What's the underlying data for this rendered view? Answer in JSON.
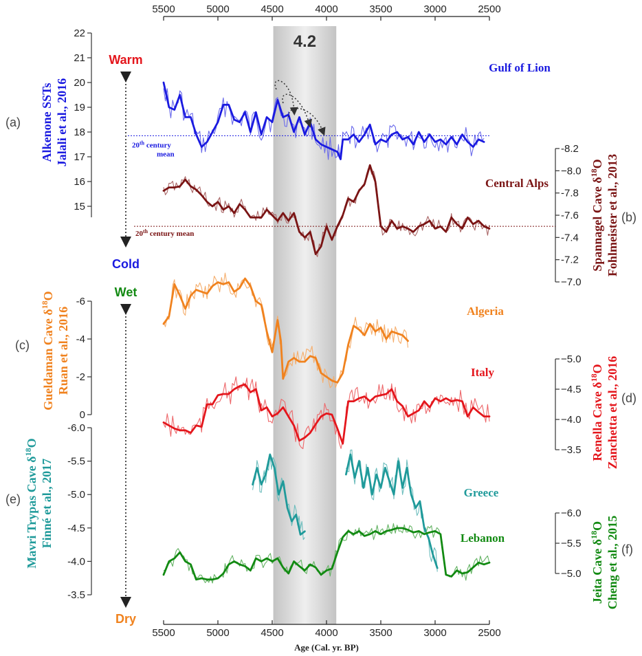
{
  "chart_data": {
    "type": "line",
    "x_axis": {
      "label": "Age (Cal. yr. BP)",
      "range": [
        5500,
        2500
      ],
      "reversed": true,
      "ticks": [
        5500,
        5000,
        4500,
        4000,
        3500,
        3000,
        2500
      ],
      "top_and_bottom": true
    },
    "event": {
      "label": "4.2",
      "x_range": [
        4490,
        3910
      ],
      "color": "#c9c9c9"
    },
    "axis_annotations": {
      "top": {
        "warm": "Warm",
        "cold": "Cold",
        "warm_color": "#e4161c",
        "cold_color": "#1a1ae0"
      },
      "bottom": {
        "wet": "Wet",
        "dry": "Dry",
        "wet_color": "#128a12",
        "dry_color": "#f0821e"
      }
    },
    "panels": [
      {
        "id": "a",
        "panel_label": "(a)",
        "site": "Gulf of Lion",
        "color": "#1a1ae0",
        "side": "left",
        "axis_title": [
          "Alkenone SSTs",
          "Jalali et al., 2016"
        ],
        "ticks": [
          15,
          16,
          17,
          18,
          19,
          20,
          21,
          22
        ],
        "ylim": [
          14.6,
          22
        ],
        "reference_line": {
          "value": 17.85,
          "label_line1": "20",
          "label_sup": "th",
          "label_line1_rest": " century",
          "label_line2": "mean"
        },
        "series": {
          "x": [
            5500,
            5450,
            5400,
            5350,
            5300,
            5250,
            5200,
            5150,
            5100,
            5050,
            5000,
            4950,
            4900,
            4850,
            4800,
            4750,
            4700,
            4650,
            4600,
            4550,
            4500,
            4450,
            4400,
            4350,
            4300,
            4250,
            4200,
            4150,
            4100,
            4050,
            4000,
            3950,
            3900,
            3870,
            3850,
            3800,
            3750,
            3700,
            3650,
            3600,
            3550,
            3500,
            3450,
            3400,
            3350,
            3300,
            3250,
            3200,
            3150,
            3100,
            3050,
            3000,
            2950,
            2900,
            2850,
            2800,
            2750,
            2700,
            2650,
            2600,
            2550
          ],
          "y": [
            20.0,
            19.0,
            18.9,
            19.5,
            18.6,
            18.6,
            17.9,
            17.4,
            17.6,
            18.0,
            18.4,
            19.1,
            19.1,
            18.5,
            18.4,
            18.8,
            18.0,
            18.8,
            17.9,
            18.6,
            18.4,
            19.3,
            18.6,
            18.7,
            18.0,
            18.6,
            17.9,
            18.4,
            17.7,
            17.5,
            17.4,
            17.3,
            17.2,
            16.9,
            17.7,
            17.7,
            17.9,
            17.6,
            17.9,
            18.3,
            17.5,
            17.7,
            17.6,
            17.9,
            18.0,
            17.7,
            17.8,
            17.5,
            18.0,
            17.6,
            17.9,
            17.6,
            17.7,
            17.5,
            17.8,
            17.5,
            17.9,
            17.6,
            17.4,
            17.7,
            17.6
          ]
        }
      },
      {
        "id": "b",
        "panel_label": "(b)",
        "site": "Central Alps",
        "color": "#7a1414",
        "side": "right",
        "axis_title": [
          "Spannagel Cave δ18O",
          "Fohlmeister et al., 2013"
        ],
        "ticks": [
          -8.2,
          -8.0,
          -7.8,
          -7.6,
          -7.4,
          -7.2,
          -7.0
        ],
        "ylim": [
          -8.2,
          -7.0
        ],
        "inverted": true,
        "reference_line": {
          "value": -7.5,
          "label_line1": "20",
          "label_sup": "th",
          "label_line1_rest": " century mean"
        },
        "series": {
          "x": [
            5500,
            5450,
            5400,
            5350,
            5300,
            5250,
            5200,
            5150,
            5100,
            5050,
            5000,
            4950,
            4900,
            4850,
            4800,
            4750,
            4700,
            4650,
            4600,
            4550,
            4500,
            4450,
            4400,
            4350,
            4300,
            4250,
            4200,
            4150,
            4100,
            4050,
            4000,
            3950,
            3900,
            3850,
            3800,
            3750,
            3700,
            3650,
            3600,
            3550,
            3500,
            3450,
            3400,
            3350,
            3300,
            3250,
            3200,
            3150,
            3100,
            3050,
            3000,
            2950,
            2900,
            2850,
            2800,
            2750,
            2700,
            2650,
            2600,
            2550,
            2500
          ],
          "y": [
            -7.82,
            -7.85,
            -7.85,
            -7.86,
            -7.92,
            -7.86,
            -7.83,
            -7.78,
            -7.72,
            -7.68,
            -7.72,
            -7.65,
            -7.68,
            -7.62,
            -7.7,
            -7.65,
            -7.58,
            -7.58,
            -7.58,
            -7.65,
            -7.6,
            -7.55,
            -7.62,
            -7.55,
            -7.62,
            -7.45,
            -7.4,
            -7.45,
            -7.25,
            -7.32,
            -7.5,
            -7.38,
            -7.5,
            -7.6,
            -7.75,
            -7.72,
            -7.82,
            -7.88,
            -8.05,
            -7.9,
            -7.5,
            -7.45,
            -7.55,
            -7.48,
            -7.5,
            -7.48,
            -7.45,
            -7.5,
            -7.52,
            -7.55,
            -7.48,
            -7.5,
            -7.45,
            -7.58,
            -7.52,
            -7.48,
            -7.58,
            -7.52,
            -7.55,
            -7.5,
            -7.48
          ]
        }
      },
      {
        "id": "c",
        "panel_label": "(c)",
        "site": "Algeria",
        "color": "#f0821e",
        "side": "left",
        "axis_title": [
          "Gueldaman Cave δ18O",
          "Ruan et al., 2016"
        ],
        "ticks": [
          0,
          -2,
          -4,
          -6
        ],
        "tick_labels": [
          "0",
          "-2",
          "-4",
          "-6"
        ],
        "ylim": [
          0,
          -7.2
        ],
        "inverted": true,
        "series": {
          "x": [
            5500,
            5450,
            5400,
            5350,
            5300,
            5250,
            5200,
            5150,
            5100,
            5050,
            5000,
            4950,
            4900,
            4850,
            4800,
            4750,
            4700,
            4650,
            4600,
            4550,
            4500,
            4450,
            4420,
            4400,
            4350,
            4300,
            4250,
            4200,
            4150,
            4100,
            4050,
            4000,
            3950,
            3900,
            3850,
            3800,
            3750,
            3700,
            3650,
            3600,
            3550,
            3500,
            3450,
            3400,
            3350,
            3300,
            3250
          ],
          "y": [
            -4.8,
            -5.2,
            -6.9,
            -6.3,
            -5.6,
            -6.3,
            -6.6,
            -6.5,
            -6.4,
            -6.8,
            -7.0,
            -6.9,
            -7.0,
            -6.5,
            -6.7,
            -7.2,
            -6.8,
            -6.0,
            -5.8,
            -4.4,
            -3.3,
            -5.0,
            -3.9,
            -1.9,
            -2.8,
            -3.0,
            -2.8,
            -2.8,
            -3.1,
            -3.0,
            -2.2,
            -2.0,
            -1.8,
            -1.7,
            -2.2,
            -3.7,
            -4.7,
            -4.5,
            -4.2,
            -4.8,
            -4.4,
            -4.6,
            -4.0,
            -4.4,
            -4.3,
            -4.2,
            -3.9
          ]
        }
      },
      {
        "id": "d",
        "panel_label": "(d)",
        "site": "Italy",
        "color": "#e4161c",
        "side": "right",
        "axis_title": [
          "Renella Cave δ18O",
          "Zanchetta et al., 2016"
        ],
        "ticks": [
          -5.0,
          -4.5,
          -4.0,
          -3.5
        ],
        "ylim": [
          -5.1,
          -3.2
        ],
        "inverted": true,
        "series": {
          "x": [
            5500,
            5450,
            5400,
            5350,
            5300,
            5250,
            5200,
            5150,
            5100,
            5050,
            5000,
            4950,
            4900,
            4850,
            4800,
            4750,
            4700,
            4650,
            4600,
            4550,
            4500,
            4450,
            4400,
            4350,
            4300,
            4250,
            4200,
            4150,
            4100,
            4050,
            4000,
            3950,
            3900,
            3850,
            3800,
            3750,
            3700,
            3650,
            3600,
            3550,
            3500,
            3450,
            3400,
            3350,
            3300,
            3250,
            3200,
            3150,
            3100,
            3050,
            3000,
            2950,
            2900,
            2850,
            2800,
            2750,
            2700,
            2650,
            2600,
            2550,
            2500
          ],
          "y": [
            -3.95,
            -3.9,
            -3.85,
            -3.82,
            -3.82,
            -3.78,
            -3.9,
            -3.88,
            -4.25,
            -4.25,
            -4.4,
            -4.42,
            -4.42,
            -4.5,
            -4.55,
            -4.58,
            -4.45,
            -4.5,
            -4.15,
            -4.2,
            -4.05,
            -4.1,
            -4.2,
            -4.05,
            -3.9,
            -3.65,
            -3.7,
            -3.78,
            -3.92,
            -4.05,
            -4.1,
            -4.08,
            -3.85,
            -3.6,
            -4.3,
            -4.3,
            -4.35,
            -4.38,
            -4.3,
            -4.38,
            -4.4,
            -4.42,
            -4.5,
            -4.3,
            -4.22,
            -4.05,
            -4.1,
            -4.15,
            -4.3,
            -4.2,
            -4.35,
            -4.3,
            -4.35,
            -4.3,
            -4.32,
            -4.3,
            -4.05,
            -4.2,
            -4.12,
            -4.05,
            -4.05
          ]
        }
      },
      {
        "id": "e",
        "panel_label": "(e)",
        "site": "Greece",
        "color": "#1f9a9a",
        "side": "left",
        "axis_title": [
          "Mavri Trypas Cave δ18O",
          "Finné et al., 2017"
        ],
        "ticks": [
          -6.0,
          -5.5,
          -5.0,
          -4.5,
          -4.0,
          -3.5
        ],
        "ylim": [
          -6.1,
          -3.35
        ],
        "inverted": true,
        "series": {
          "x": [
            4680,
            4640,
            4600,
            4560,
            4520,
            4480,
            4440,
            4400,
            4360,
            4320,
            4280,
            4240,
            4200,
            null,
            3820,
            3780,
            3740,
            3700,
            3660,
            3620,
            3580,
            3540,
            3500,
            3460,
            3420,
            3380,
            3340,
            3300,
            3260,
            3220,
            3180,
            3140,
            3100,
            3060,
            3020,
            2980
          ],
          "y": [
            -5.15,
            -5.4,
            -5.15,
            -5.3,
            -5.6,
            -5.4,
            -5.0,
            -5.2,
            -4.8,
            -4.6,
            -4.7,
            -4.4,
            -4.45,
            null,
            -5.3,
            -5.6,
            -5.25,
            -5.5,
            -5.1,
            -5.4,
            -5.0,
            -5.3,
            -5.1,
            -5.4,
            -5.2,
            -5.0,
            -5.5,
            -5.1,
            -5.4,
            -5.0,
            -4.8,
            -4.9,
            -4.5,
            -4.35,
            -4.1,
            -3.9
          ]
        }
      },
      {
        "id": "f",
        "panel_label": "(f)",
        "site": "Lebanon",
        "color": "#128a12",
        "side": "right",
        "axis_title": [
          "Jeita Cave δ18O",
          "Cheng et al., 2015"
        ],
        "ticks": [
          -6.0,
          -5.5,
          -5.0
        ],
        "ylim": [
          -6.1,
          -4.85
        ],
        "inverted": true,
        "series": {
          "x": [
            5500,
            5450,
            5400,
            5350,
            5300,
            5250,
            5200,
            5150,
            5100,
            5050,
            5000,
            4950,
            4900,
            4850,
            4800,
            4750,
            4700,
            4650,
            4600,
            4550,
            4500,
            4450,
            4400,
            4350,
            4300,
            4250,
            4200,
            4150,
            4100,
            4050,
            4000,
            3950,
            3900,
            3850,
            3800,
            3750,
            3700,
            3650,
            3600,
            3550,
            3500,
            3450,
            3400,
            3350,
            3300,
            3250,
            3200,
            3150,
            3100,
            3050,
            3000,
            2950,
            2900,
            2850,
            2800,
            2750,
            2700,
            2650,
            2600,
            2550,
            2500
          ],
          "y": [
            -4.98,
            -5.2,
            -5.25,
            -5.35,
            -5.2,
            -5.15,
            -4.9,
            -4.92,
            -4.9,
            -4.9,
            -4.92,
            -5.0,
            -5.15,
            -5.2,
            -5.15,
            -5.12,
            -5.05,
            -5.25,
            -5.2,
            -5.25,
            -5.2,
            -5.25,
            -5.1,
            -5.0,
            -5.2,
            -5.12,
            -5.05,
            -5.15,
            -5.1,
            -4.98,
            -5.05,
            -5.08,
            -5.35,
            -5.6,
            -5.7,
            -5.65,
            -5.7,
            -5.62,
            -5.65,
            -5.7,
            -5.65,
            -5.7,
            -5.72,
            -5.75,
            -5.75,
            -5.72,
            -5.68,
            -5.7,
            -5.65,
            -5.68,
            -5.7,
            -5.65,
            -4.98,
            -4.95,
            -5.05,
            -5.0,
            -5.02,
            -5.1,
            -5.18,
            -5.15,
            -5.18
          ]
        }
      }
    ]
  }
}
